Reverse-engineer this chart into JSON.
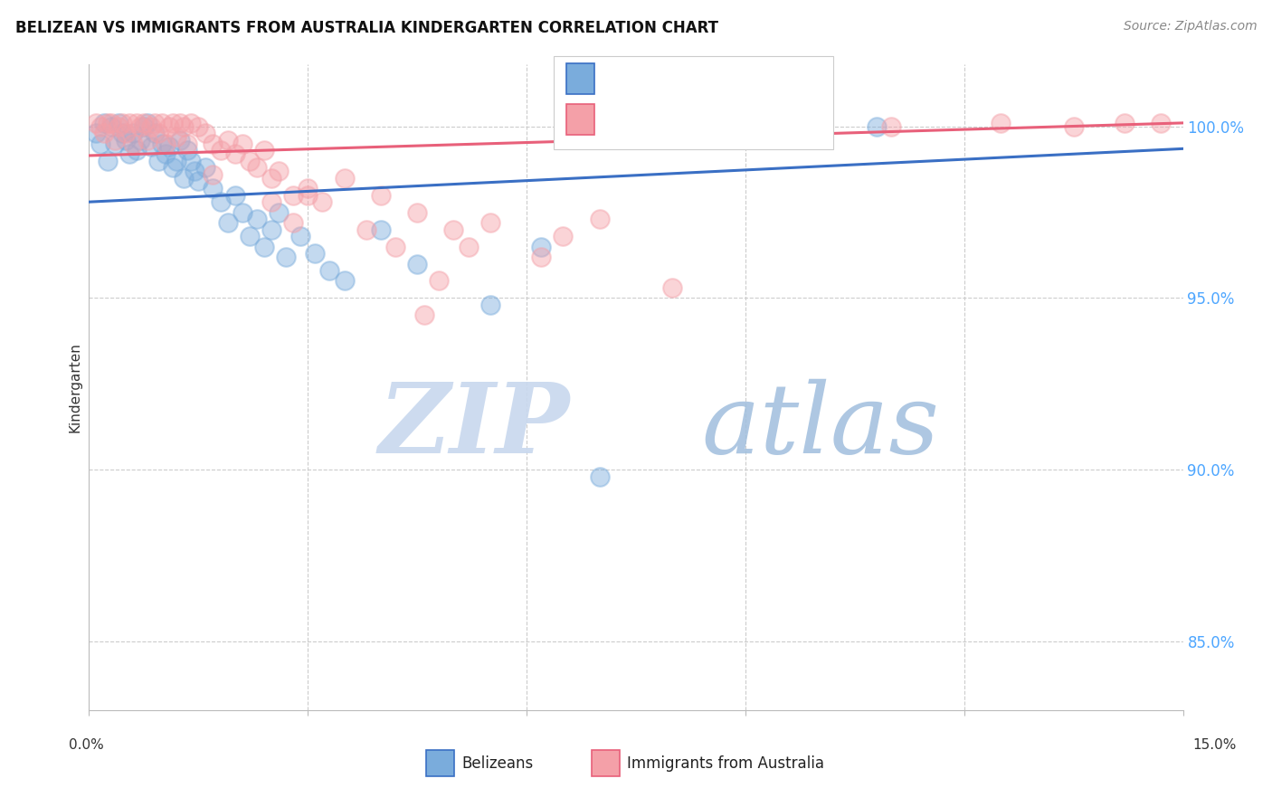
{
  "title": "BELIZEAN VS IMMIGRANTS FROM AUSTRALIA KINDERGARTEN CORRELATION CHART",
  "source": "Source: ZipAtlas.com",
  "ylabel": "Kindergarten",
  "xmin": 0.0,
  "xmax": 15.0,
  "ymin": 83.0,
  "ymax": 101.8,
  "yticks": [
    85.0,
    90.0,
    95.0,
    100.0
  ],
  "ytick_labels": [
    "85.0%",
    "90.0%",
    "95.0%",
    "100.0%"
  ],
  "legend_label_blue": "Belizeans",
  "legend_label_pink": "Immigrants from Australia",
  "blue_scatter_color": "#7AACDC",
  "pink_scatter_color": "#F4A0A8",
  "trendline_blue": "#3A6FC4",
  "trendline_pink": "#E8607A",
  "blue_trend_x0": 0.0,
  "blue_trend_x1": 15.0,
  "blue_trend_y0": 97.8,
  "blue_trend_y1": 99.35,
  "pink_trend_x0": 0.0,
  "pink_trend_x1": 15.0,
  "pink_trend_y0": 99.15,
  "pink_trend_y1": 100.1,
  "raxis_color": "#4da6ff",
  "background_color": "#ffffff",
  "grid_color": "#cccccc",
  "watermark_zip_color": "#c8d8ee",
  "watermark_atlas_color": "#a0bedd",
  "blue_x": [
    0.1,
    0.15,
    0.2,
    0.25,
    0.3,
    0.35,
    0.4,
    0.45,
    0.5,
    0.55,
    0.6,
    0.65,
    0.7,
    0.75,
    0.8,
    0.85,
    0.9,
    0.95,
    1.0,
    1.05,
    1.1,
    1.15,
    1.2,
    1.25,
    1.3,
    1.35,
    1.4,
    1.45,
    1.5,
    1.6,
    1.7,
    1.8,
    1.9,
    2.0,
    2.1,
    2.2,
    2.3,
    2.4,
    2.5,
    2.6,
    2.7,
    2.9,
    3.1,
    3.3,
    3.5,
    4.0,
    4.5,
    5.5,
    6.2,
    8.0,
    9.5,
    10.8,
    7.0
  ],
  "blue_y": [
    99.8,
    99.5,
    100.1,
    99.0,
    100.0,
    99.5,
    100.1,
    99.8,
    99.6,
    99.2,
    99.8,
    99.3,
    99.6,
    100.0,
    100.1,
    99.4,
    99.8,
    99.0,
    99.5,
    99.2,
    99.4,
    98.8,
    99.0,
    99.6,
    98.5,
    99.3,
    99.0,
    98.7,
    98.4,
    98.8,
    98.2,
    97.8,
    97.2,
    98.0,
    97.5,
    96.8,
    97.3,
    96.5,
    97.0,
    97.5,
    96.2,
    96.8,
    96.3,
    95.8,
    95.5,
    97.0,
    96.0,
    94.8,
    96.5,
    99.8,
    100.0,
    100.0,
    89.8
  ],
  "pink_x": [
    0.1,
    0.15,
    0.2,
    0.25,
    0.3,
    0.35,
    0.4,
    0.45,
    0.5,
    0.55,
    0.6,
    0.65,
    0.7,
    0.75,
    0.8,
    0.85,
    0.9,
    0.95,
    1.0,
    1.05,
    1.1,
    1.15,
    1.2,
    1.25,
    1.3,
    1.35,
    1.4,
    1.5,
    1.6,
    1.7,
    1.8,
    1.9,
    2.0,
    2.1,
    2.2,
    2.3,
    2.4,
    2.5,
    2.6,
    2.8,
    3.0,
    3.2,
    3.5,
    4.0,
    4.5,
    5.0,
    5.5,
    6.5,
    7.0,
    8.5,
    9.0,
    10.0,
    11.0,
    12.5,
    13.5,
    14.2,
    14.7,
    4.8,
    6.2,
    3.8,
    5.2,
    8.0,
    2.5,
    3.0,
    4.2,
    2.8,
    1.7,
    4.6
  ],
  "pink_y": [
    100.1,
    100.0,
    99.8,
    100.1,
    100.1,
    99.6,
    100.0,
    100.1,
    99.8,
    100.1,
    99.5,
    100.1,
    100.0,
    100.1,
    99.6,
    100.0,
    100.1,
    99.8,
    100.1,
    99.5,
    100.0,
    100.1,
    99.7,
    100.1,
    100.0,
    99.5,
    100.1,
    100.0,
    99.8,
    99.5,
    99.3,
    99.6,
    99.2,
    99.5,
    99.0,
    98.8,
    99.3,
    98.5,
    98.7,
    98.0,
    98.2,
    97.8,
    98.5,
    98.0,
    97.5,
    97.0,
    97.2,
    96.8,
    97.3,
    99.8,
    100.1,
    100.0,
    100.0,
    100.1,
    100.0,
    100.1,
    100.1,
    95.5,
    96.2,
    97.0,
    96.5,
    95.3,
    97.8,
    98.0,
    96.5,
    97.2,
    98.6,
    94.5
  ]
}
